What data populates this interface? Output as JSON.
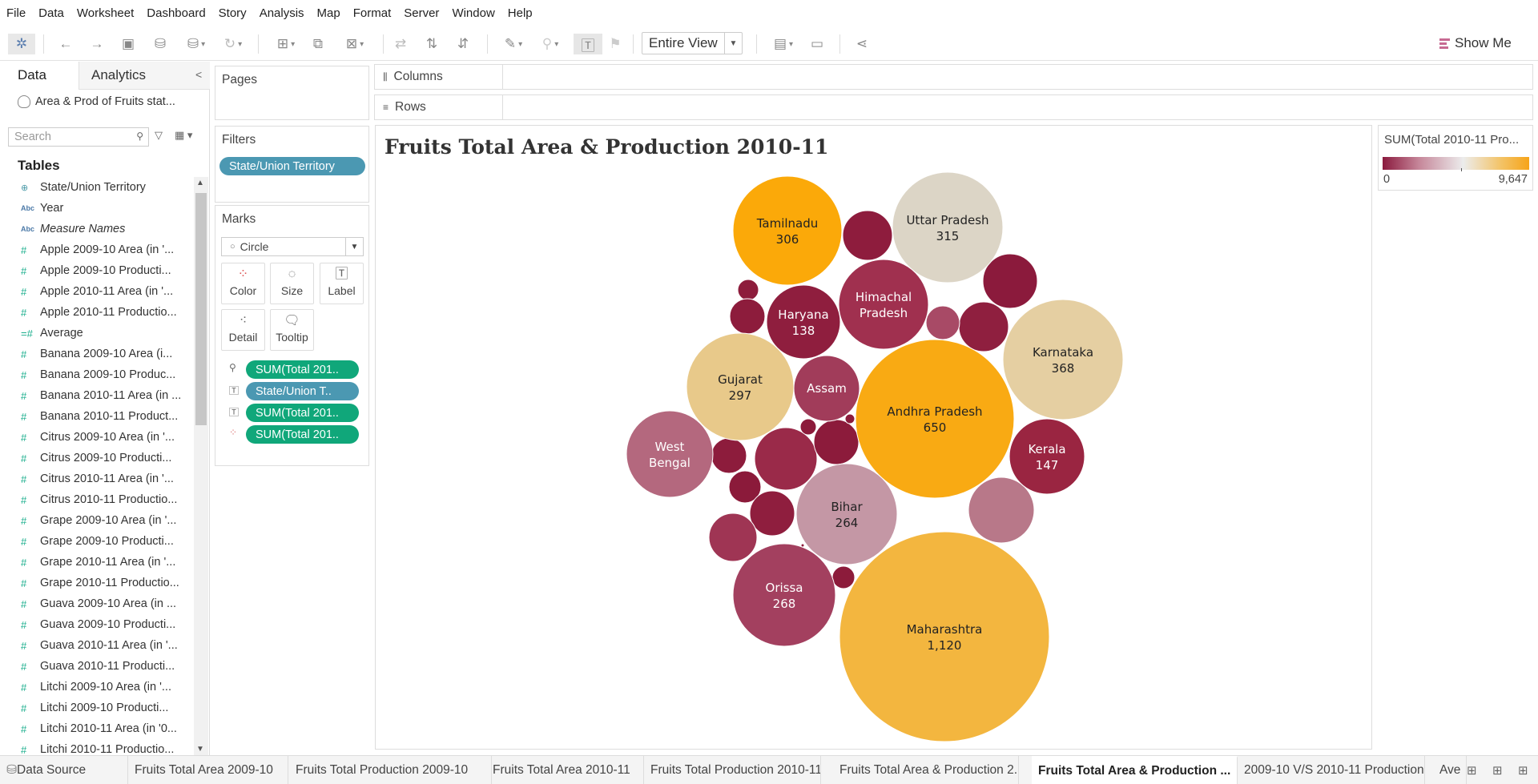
{
  "menu": [
    "File",
    "Data",
    "Worksheet",
    "Dashboard",
    "Story",
    "Analysis",
    "Map",
    "Format",
    "Server",
    "Window",
    "Help"
  ],
  "toolbar": {
    "view_mode": "Entire View",
    "show_me": "Show Me"
  },
  "left_pane": {
    "tab_data": "Data",
    "tab_analytics": "Analytics",
    "data_source": "Area & Prod of Fruits stat...",
    "search_placeholder": "Search",
    "tables_heading": "Tables",
    "fields": [
      {
        "label": "State/Union Territory",
        "type": "geo"
      },
      {
        "label": "Year",
        "type": "abc"
      },
      {
        "label": "Measure Names",
        "type": "abc",
        "italic": true
      },
      {
        "label": "Apple 2009-10 Area (in '...",
        "type": "num"
      },
      {
        "label": "Apple 2009-10 Producti...",
        "type": "num"
      },
      {
        "label": "Apple 2010-11 Area (in '...",
        "type": "num"
      },
      {
        "label": "Apple 2010-11 Productio...",
        "type": "num"
      },
      {
        "label": "Average",
        "type": "calc"
      },
      {
        "label": "Banana 2009-10 Area (i...",
        "type": "num"
      },
      {
        "label": "Banana 2009-10 Produc...",
        "type": "num"
      },
      {
        "label": "Banana 2010-11 Area (in ...",
        "type": "num"
      },
      {
        "label": "Banana 2010-11 Product...",
        "type": "num"
      },
      {
        "label": "Citrus 2009-10 Area (in '...",
        "type": "num"
      },
      {
        "label": "Citrus 2009-10 Producti...",
        "type": "num"
      },
      {
        "label": "Citrus 2010-11 Area (in '...",
        "type": "num"
      },
      {
        "label": "Citrus 2010-11 Productio...",
        "type": "num"
      },
      {
        "label": "Grape 2009-10 Area (in '...",
        "type": "num"
      },
      {
        "label": "Grape 2009-10 Producti...",
        "type": "num"
      },
      {
        "label": "Grape 2010-11 Area (in '...",
        "type": "num"
      },
      {
        "label": "Grape 2010-11 Productio...",
        "type": "num"
      },
      {
        "label": "Guava 2009-10 Area (in ...",
        "type": "num"
      },
      {
        "label": "Guava 2009-10 Producti...",
        "type": "num"
      },
      {
        "label": "Guava 2010-11 Area (in '...",
        "type": "num"
      },
      {
        "label": "Guava 2010-11 Producti...",
        "type": "num"
      },
      {
        "label": "Litchi 2009-10 Area (in '...",
        "type": "num"
      },
      {
        "label": "Litchi 2009-10 Producti...",
        "type": "num"
      },
      {
        "label": "Litchi 2010-11 Area (in '0...",
        "type": "num"
      },
      {
        "label": "Litchi 2010-11 Productio...",
        "type": "num"
      }
    ]
  },
  "pages": {
    "title": "Pages"
  },
  "filters": {
    "title": "Filters",
    "pill": "State/Union Territory"
  },
  "marks": {
    "title": "Marks",
    "type": "Circle",
    "buttons": {
      "color": "Color",
      "size": "Size",
      "label": "Label",
      "detail": "Detail",
      "tooltip": "Tooltip"
    },
    "pills": [
      "SUM(Total 201..",
      "State/Union T..",
      "SUM(Total 201..",
      "SUM(Total 201.."
    ]
  },
  "shelves": {
    "columns": "Columns",
    "rows": "Rows"
  },
  "viz": {
    "title": "Fruits Total Area & Production 2010-11"
  },
  "legend": {
    "title": "SUM(Total 2010-11 Pro...",
    "min": "0",
    "max": "9,647"
  },
  "chart_data": {
    "type": "packed-bubble",
    "title": "Fruits Total Area & Production 2010-11",
    "size_measure": "SUM(Total 2010-11 Area)",
    "color_measure": "SUM(Total 2010-11 Production)",
    "color_range": [
      0,
      9647
    ],
    "colors": {
      "low": "#8b1a3e",
      "mid": "#ececec",
      "high": "#f6a419"
    },
    "bubbles": [
      {
        "name": "Maharashtra",
        "value": "1,120"
      },
      {
        "name": "Andhra Pradesh",
        "value": "650"
      },
      {
        "name": "Karnataka",
        "value": "368"
      },
      {
        "name": "Uttar Pradesh",
        "value": "315"
      },
      {
        "name": "Tamilnadu",
        "value": "306"
      },
      {
        "name": "Gujarat",
        "value": "297"
      },
      {
        "name": "Orissa",
        "value": "268"
      },
      {
        "name": "Bihar",
        "value": "264"
      },
      {
        "name": "West Bengal",
        "value": ""
      },
      {
        "name": "Himachal Pradesh",
        "value": ""
      },
      {
        "name": "Kerala",
        "value": "147"
      },
      {
        "name": "Haryana",
        "value": "138"
      },
      {
        "name": "Assam",
        "value": ""
      }
    ]
  },
  "sheet_tabs": [
    {
      "label": "Data Source",
      "active": false
    },
    {
      "label": "Fruits Total Area 2009-10",
      "active": false
    },
    {
      "label": "Fruits Total Production 2009-10",
      "active": false
    },
    {
      "label": "Fruits Total Area 2010-11",
      "active": false
    },
    {
      "label": "Fruits Total Production 2010-11",
      "active": false
    },
    {
      "label": "Fruits Total Area & Production 2...",
      "active": false
    },
    {
      "label": "Fruits Total Area & Production ...",
      "active": true
    },
    {
      "label": "2009-10 V/S 2010-11 Production",
      "active": false
    },
    {
      "label": "Ave",
      "active": false
    }
  ]
}
